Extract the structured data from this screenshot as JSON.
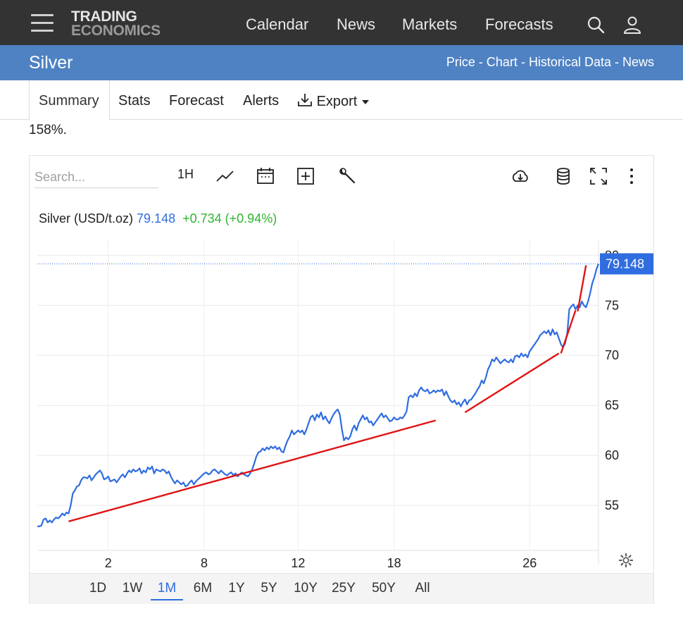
{
  "header": {
    "logo_line1": "TRADING",
    "logo_line2": "ECONOMICS",
    "nav": [
      "Calendar",
      "News",
      "Markets",
      "Forecasts"
    ]
  },
  "subheader": {
    "title": "Silver",
    "crumbs": [
      "Price",
      "Chart",
      "Historical Data",
      "News"
    ]
  },
  "tabs": {
    "summary": "Summary",
    "stats": "Stats",
    "forecast": "Forecast",
    "alerts": "Alerts",
    "export": "Export"
  },
  "snippet": "158%.",
  "toolbar": {
    "search_placeholder": "Search...",
    "interval": "1H"
  },
  "legend": {
    "name": "Silver (USD/t.oz)",
    "price": "79.148",
    "change": "+0.734 (+0.94%)"
  },
  "ranges": [
    "1D",
    "1W",
    "1M",
    "6M",
    "1Y",
    "5Y",
    "10Y",
    "25Y",
    "50Y",
    "All"
  ],
  "active_range": "1M",
  "colors": {
    "line": "#2f6de0",
    "trend": "#e01414",
    "up": "#2fb52f",
    "header": "#333333",
    "bluebar": "#4f82c3"
  },
  "chart_data": {
    "type": "line",
    "x_ticks": [
      "2",
      "8",
      "12",
      "18",
      "26"
    ],
    "y_ticks": [
      55,
      60,
      65,
      70,
      75,
      80
    ],
    "ylim": [
      50.5,
      81.5
    ],
    "last_value": "79.148",
    "grid": true,
    "series": [
      {
        "values": [
          52.9,
          52.9,
          53.0,
          53.6,
          53.7,
          53.3,
          53.5,
          53.3,
          53.6,
          53.8,
          53.7,
          53.9,
          54.2,
          54.0,
          54.3,
          54.2,
          55.0,
          56.2,
          56.5,
          56.9,
          57.0,
          57.5,
          57.8,
          57.8,
          57.7,
          58.0,
          57.5,
          57.8,
          58.1,
          58.3,
          58.5,
          58.2,
          57.6,
          57.7,
          57.9,
          57.4,
          57.5,
          57.6,
          57.3,
          57.6,
          57.9,
          58.1,
          57.8,
          58.2,
          58.5,
          58.3,
          58.6,
          58.4,
          58.5,
          58.7,
          58.2,
          58.5,
          58.3,
          58.8,
          58.6,
          58.9,
          58.2,
          58.6,
          58.5,
          58.4,
          58.6,
          58.5,
          58.2,
          58.4,
          57.9,
          57.5,
          57.2,
          57.5,
          57.3,
          57.1,
          57.3,
          56.9,
          57.0,
          57.3,
          57.5,
          57.1,
          57.4,
          57.6,
          57.8,
          58.0,
          58.2,
          58.3,
          58.1,
          58.2,
          58.5,
          58.6,
          58.4,
          58.2,
          58.5,
          58.3,
          58.1,
          58.0,
          58.2,
          58.3,
          58.0,
          58.2,
          57.9,
          58.1,
          58.3,
          58.1,
          58.0,
          57.9,
          58.2,
          58.6,
          59.2,
          59.9,
          60.3,
          60.4,
          60.7,
          60.5,
          60.8,
          60.6,
          60.9,
          60.7,
          60.9,
          60.6,
          60.8,
          60.4,
          60.3,
          61.0,
          61.5,
          61.9,
          62.5,
          62.1,
          62.3,
          62.5,
          62.3,
          62.5,
          62.1,
          62.6,
          63.2,
          63.8,
          64.0,
          63.5,
          64.1,
          63.8,
          64.3,
          63.6,
          63.9,
          63.5,
          63.2,
          63.7,
          64.1,
          64.4,
          64.6,
          64.1,
          62.6,
          61.5,
          61.8,
          61.6,
          61.9,
          62.6,
          63.0,
          62.5,
          63.2,
          63.6,
          64.0,
          63.6,
          63.8,
          63.3,
          63.4,
          63.0,
          63.3,
          63.6,
          63.9,
          64.2,
          63.8,
          64.0,
          63.7,
          63.4,
          63.5,
          63.8,
          63.6,
          63.6,
          63.8,
          63.7,
          64.0,
          64.4,
          65.8,
          66.0,
          65.8,
          66.2,
          65.9,
          66.5,
          66.8,
          66.5,
          66.4,
          66.6,
          66.2,
          66.3,
          66.5,
          66.3,
          66.5,
          66.4,
          66.6,
          66.0,
          66.4,
          65.9,
          65.5,
          65.3,
          65.5,
          65.1,
          65.3,
          64.9,
          65.3,
          65.6,
          65.1,
          65.5,
          65.6,
          65.9,
          66.2,
          66.6,
          66.9,
          67.5,
          67.2,
          67.8,
          68.6,
          69.0,
          69.6,
          69.4,
          69.8,
          69.5,
          69.2,
          69.4,
          69.6,
          69.4,
          69.3,
          69.6,
          69.3,
          69.9,
          70.0,
          69.8,
          70.2,
          69.9,
          70.1,
          69.8,
          70.4,
          70.7,
          71.0,
          71.3,
          71.6,
          72.0,
          72.2,
          72.4,
          72.2,
          72.5,
          72.0,
          72.6,
          72.1,
          72.3,
          71.7,
          71.1,
          70.8,
          71.2,
          72.2,
          74.6,
          74.9,
          75.1,
          74.6,
          75.0,
          74.8,
          75.4,
          75.0,
          74.8,
          75.4,
          76.2,
          77.2,
          77.8,
          78.6,
          79.148
        ]
      }
    ]
  }
}
